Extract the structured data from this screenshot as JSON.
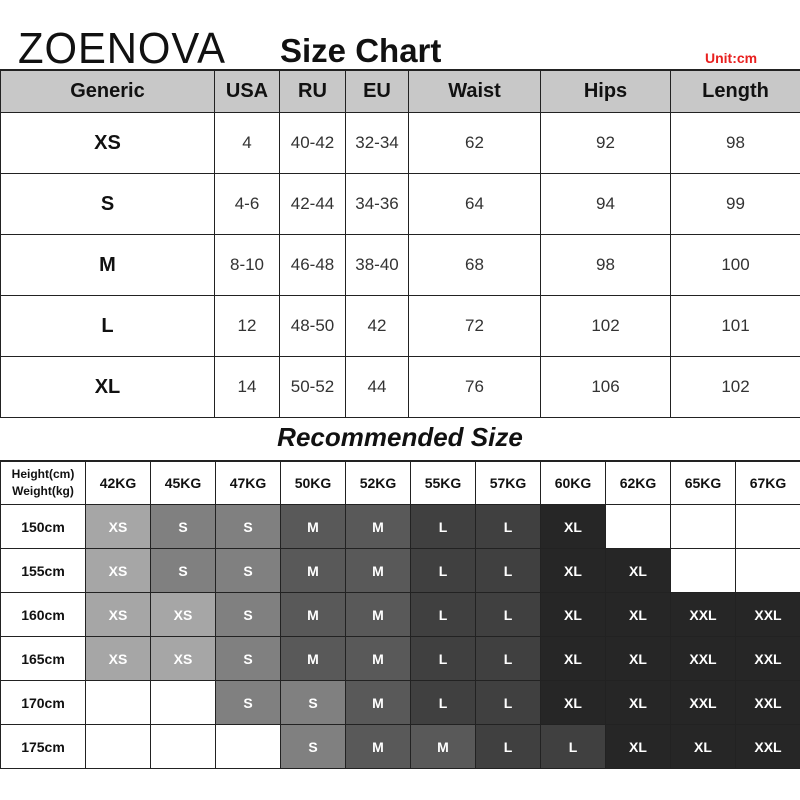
{
  "brand": "ZOENOVA",
  "title": "Size Chart",
  "unit": "Unit:cm",
  "size_table": {
    "headers": [
      "Generic",
      "USA",
      "RU",
      "EU",
      "Waist",
      "Hips",
      "Length"
    ],
    "rows": [
      [
        "XS",
        "4",
        "40-42",
        "32-34",
        "62",
        "92",
        "98"
      ],
      [
        "S",
        "4-6",
        "42-44",
        "34-36",
        "64",
        "94",
        "99"
      ],
      [
        "M",
        "8-10",
        "46-48",
        "38-40",
        "68",
        "98",
        "100"
      ],
      [
        "L",
        "12",
        "48-50",
        "42",
        "72",
        "102",
        "101"
      ],
      [
        "XL",
        "14",
        "50-52",
        "44",
        "76",
        "106",
        "102"
      ]
    ]
  },
  "recommended": {
    "title": "Recommended Size",
    "corner_label_1": "Height(cm)",
    "corner_label_2": "Weight(kg)",
    "weights": [
      "42KG",
      "45KG",
      "47KG",
      "50KG",
      "52KG",
      "55KG",
      "57KG",
      "60KG",
      "62KG",
      "65KG",
      "67KG"
    ],
    "rows": [
      {
        "height": "150cm",
        "sizes": [
          "XS",
          "S",
          "S",
          "M",
          "M",
          "L",
          "L",
          "XL",
          "",
          "",
          ""
        ]
      },
      {
        "height": "155cm",
        "sizes": [
          "XS",
          "S",
          "S",
          "M",
          "M",
          "L",
          "L",
          "XL",
          "XL",
          "",
          ""
        ]
      },
      {
        "height": "160cm",
        "sizes": [
          "XS",
          "XS",
          "S",
          "M",
          "M",
          "L",
          "L",
          "XL",
          "XL",
          "XXL",
          "XXL"
        ]
      },
      {
        "height": "165cm",
        "sizes": [
          "XS",
          "XS",
          "S",
          "M",
          "M",
          "L",
          "L",
          "XL",
          "XL",
          "XXL",
          "XXL"
        ]
      },
      {
        "height": "170cm",
        "sizes": [
          "",
          "",
          "S",
          "S",
          "M",
          "L",
          "L",
          "XL",
          "XL",
          "XXL",
          "XXL"
        ]
      },
      {
        "height": "175cm",
        "sizes": [
          "",
          "",
          "",
          "S",
          "M",
          "M",
          "L",
          "L",
          "XL",
          "XL",
          "XXL"
        ]
      }
    ],
    "size_colors": {
      "XS": "#a6a6a6",
      "S": "#808080",
      "M": "#595959",
      "L": "#404040",
      "XL": "#262626",
      "XXL": "#262626"
    }
  },
  "colors": {
    "header_bg": "#c8c8c8",
    "unit_text": "#e8201f"
  }
}
